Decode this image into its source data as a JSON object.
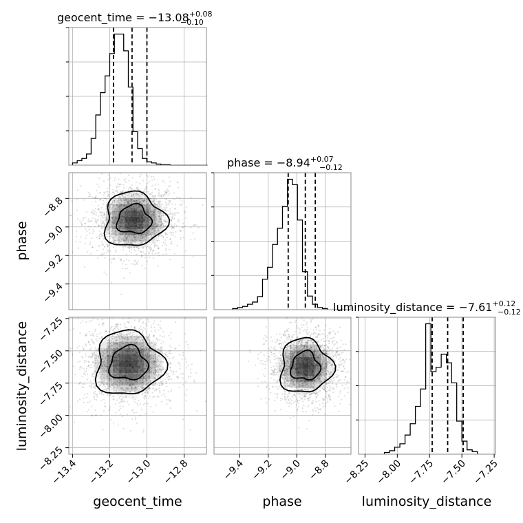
{
  "chart_data": {
    "type": "corner",
    "parameters": [
      {
        "name": "geocent_time",
        "range": [
          -13.42,
          -12.68
        ],
        "ticks": [
          -13.4,
          -13.2,
          -13.0,
          -12.8
        ],
        "tick_labels": [
          "−13.4",
          "−13.2",
          "−13.0",
          "−12.8"
        ],
        "title": {
          "prefix": "geocent_time = −13.08",
          "plus": "+0.08",
          "minus": "−0.10"
        },
        "median": -13.08,
        "quantiles": [
          -13.18,
          -13.08,
          -13.0
        ],
        "histogram": {
          "edges_start": -13.4,
          "bin_width": 0.025,
          "counts": [
            4,
            8,
            12,
            20,
            48,
            90,
            130,
            160,
            200,
            235,
            235,
            205,
            140,
            60,
            30,
            12,
            6,
            4,
            2,
            1,
            1,
            0,
            0,
            0,
            0,
            0,
            0,
            0,
            0
          ]
        }
      },
      {
        "name": "phase",
        "range": [
          -9.58,
          -8.62
        ],
        "ticks": [
          -9.4,
          -9.2,
          -9.0,
          -8.8
        ],
        "tick_labels": [
          "−9.4",
          "−9.2",
          "−9.0",
          "−8.8"
        ],
        "title": {
          "prefix": "phase = −8.94",
          "plus": "+0.07",
          "minus": "−0.12"
        },
        "median": -8.94,
        "quantiles": [
          -9.06,
          -8.94,
          -8.87
        ],
        "histogram": {
          "edges_start": -9.45,
          "bin_width": 0.035,
          "counts": [
            2,
            4,
            6,
            10,
            14,
            24,
            56,
            78,
            120,
            150,
            190,
            240,
            230,
            165,
            70,
            25,
            10,
            4,
            2
          ]
        }
      },
      {
        "name": "luminosity_distance",
        "range": [
          -8.3,
          -7.24
        ],
        "ticks": [
          -8.25,
          -8.0,
          -7.75,
          -7.5,
          -7.25
        ],
        "tick_labels": [
          "−8.25",
          "−8.00",
          "−7.75",
          "−7.50",
          "−7.25"
        ],
        "title": {
          "prefix": "luminosity_distance = −7.61",
          "plus": "+0.12",
          "minus": "−0.12"
        },
        "median": -7.61,
        "quantiles": [
          -7.73,
          -7.61,
          -7.49
        ],
        "histogram": {
          "edges_start": -8.1,
          "bin_width": 0.04,
          "counts": [
            2,
            4,
            8,
            12,
            22,
            35,
            55,
            75,
            150,
            95,
            100,
            115,
            105,
            82,
            38,
            15,
            5,
            3
          ]
        }
      }
    ],
    "pairs": [
      {
        "x": "geocent_time",
        "y": "phase",
        "center": [
          -13.07,
          -8.95
        ],
        "spread": [
          0.09,
          0.1
        ]
      },
      {
        "x": "geocent_time",
        "y": "luminosity_distance",
        "center": [
          -13.1,
          -7.6
        ],
        "spread": [
          0.1,
          0.13
        ]
      },
      {
        "x": "phase",
        "y": "luminosity_distance",
        "center": [
          -8.94,
          -7.62
        ],
        "spread": [
          0.1,
          0.11
        ]
      }
    ],
    "grid": true,
    "colors": {
      "line": "#000000",
      "grid": "#b0b0b0",
      "points": "#000000",
      "frame": "#888888"
    }
  }
}
